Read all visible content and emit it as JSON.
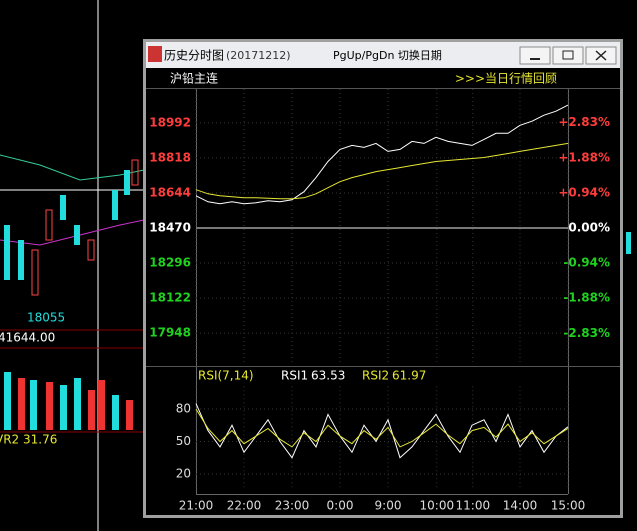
{
  "background": {
    "texts": [
      "18055",
      "41644.00",
      "VR2 31.76"
    ]
  },
  "window": {
    "title": "历史分时图",
    "date": "(20171212)",
    "hint": "PgUp/PgDn  切换日期"
  },
  "header": {
    "instrument": "沪铅主连",
    "link": ">>>当日行情回顾"
  },
  "chart_data": [
    {
      "type": "line",
      "x": [
        0,
        15,
        30,
        45,
        60,
        75,
        90,
        105,
        120,
        135,
        150,
        165,
        180,
        195,
        210,
        225,
        240,
        255,
        270,
        285,
        300,
        315,
        330,
        345,
        360,
        375,
        390,
        405,
        420,
        435,
        450,
        465
      ],
      "xlim": [
        0,
        465
      ],
      "ylim": [
        17790,
        19155
      ],
      "yticks": [
        18992,
        18818,
        18644,
        18470,
        18296,
        18122,
        17948
      ],
      "y2lim": [
        -3.68,
        3.71
      ],
      "y2ticks": [
        {
          "value": 2.83,
          "label": "+2.83%"
        },
        {
          "value": 1.88,
          "label": "+1.88%"
        },
        {
          "value": 0.94,
          "label": "+0.94%"
        },
        {
          "value": 0,
          "label": "0.00%"
        },
        {
          "value": -0.94,
          "label": "-0.94%"
        },
        {
          "value": -1.88,
          "label": "-1.88%"
        },
        {
          "value": -2.83,
          "label": "-2.83%"
        }
      ],
      "up_color": "#ff3c3c",
      "down_color": "#1ed21e",
      "flat_color": "#ffffff",
      "series": [
        {
          "color": "#ffffff",
          "values": [
            18630,
            18600,
            18590,
            18600,
            18590,
            18595,
            18605,
            18600,
            18610,
            18650,
            18720,
            18800,
            18860,
            18880,
            18870,
            18890,
            18850,
            18860,
            18900,
            18890,
            18920,
            18900,
            18890,
            18880,
            18910,
            18940,
            18940,
            18980,
            19000,
            19030,
            19050,
            19080
          ]
        },
        {
          "color": "#e6e632",
          "values": [
            18660,
            18640,
            18630,
            18625,
            18620,
            18620,
            18618,
            18615,
            18615,
            18620,
            18640,
            18670,
            18700,
            18720,
            18735,
            18750,
            18760,
            18770,
            18780,
            18790,
            18800,
            18805,
            18810,
            18815,
            18820,
            18830,
            18840,
            18850,
            18860,
            18870,
            18880,
            18890
          ]
        }
      ]
    },
    {
      "type": "line",
      "title": "RSI(7,14)",
      "x": [
        0,
        15,
        30,
        45,
        60,
        75,
        90,
        105,
        120,
        135,
        150,
        165,
        180,
        195,
        210,
        225,
        240,
        255,
        270,
        285,
        300,
        315,
        330,
        345,
        360,
        375,
        390,
        405,
        420,
        435,
        450,
        465
      ],
      "xlim": [
        0,
        465
      ],
      "xticks": [
        {
          "value": 0,
          "label": "21:00"
        },
        {
          "value": 60,
          "label": "22:00"
        },
        {
          "value": 120,
          "label": "23:00"
        },
        {
          "value": 180,
          "label": "0:00"
        },
        {
          "value": 240,
          "label": "9:00"
        },
        {
          "value": 301,
          "label": "10:00"
        },
        {
          "value": 346,
          "label": "11:00"
        },
        {
          "value": 405,
          "label": "14:00"
        },
        {
          "value": 465,
          "label": "15:00"
        }
      ],
      "ylim": [
        5,
        100
      ],
      "yticks": [
        80,
        50,
        20
      ],
      "series": [
        {
          "name": "RSI1",
          "latest": 63.53,
          "color": "#ffffff",
          "values": [
            85,
            60,
            45,
            65,
            40,
            55,
            70,
            50,
            35,
            60,
            45,
            75,
            55,
            40,
            65,
            50,
            70,
            35,
            45,
            60,
            75,
            55,
            40,
            65,
            70,
            50,
            75,
            45,
            60,
            40,
            55,
            63.53
          ]
        },
        {
          "name": "RSI2",
          "latest": 61.97,
          "color": "#e6e632",
          "values": [
            80,
            62,
            50,
            60,
            48,
            55,
            62,
            52,
            45,
            58,
            50,
            65,
            55,
            48,
            60,
            52,
            63,
            45,
            50,
            58,
            66,
            56,
            48,
            60,
            63,
            54,
            66,
            50,
            58,
            48,
            55,
            61.97
          ]
        }
      ]
    }
  ]
}
